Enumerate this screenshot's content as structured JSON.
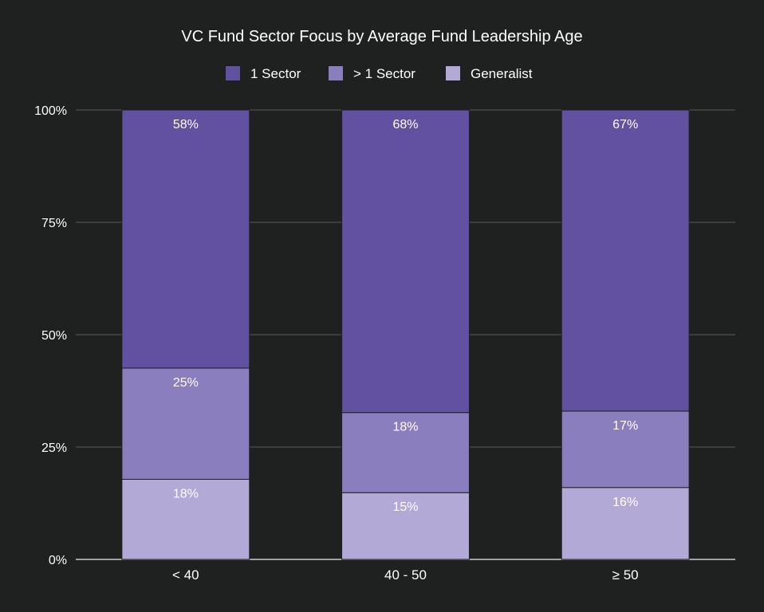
{
  "colors": {
    "background": "#1f2020",
    "text": "#ffffff",
    "grid": "#5a5a5a",
    "axis": "#cccccc",
    "bar_border": "#1f2020"
  },
  "chart_data": {
    "type": "bar",
    "stacked": true,
    "normalized_percent": true,
    "title": "VC Fund Sector Focus by Average Fund Leadership Age",
    "xlabel": "",
    "ylabel": "",
    "categories": [
      "< 40",
      "40 - 50",
      "≥ 50"
    ],
    "series": [
      {
        "name": "1 Sector",
        "color": "#6250a1",
        "values": [
          58,
          68,
          67
        ],
        "labels": [
          "58%",
          "68%",
          "67%"
        ]
      },
      {
        "name": "> 1 Sector",
        "color": "#8b7ebf",
        "values": [
          25,
          18,
          17
        ],
        "labels": [
          "25%",
          "18%",
          "17%"
        ]
      },
      {
        "name": "Generalist",
        "color": "#b3a9d6",
        "values": [
          18,
          15,
          16
        ],
        "labels": [
          "18%",
          "15%",
          "16%"
        ]
      }
    ],
    "ylim": [
      0,
      100
    ],
    "yticks": [
      0,
      25,
      50,
      75,
      100
    ],
    "ytick_labels": [
      "0%",
      "25%",
      "50%",
      "75%",
      "100%"
    ],
    "legend_position": "top-center",
    "grid": true
  }
}
